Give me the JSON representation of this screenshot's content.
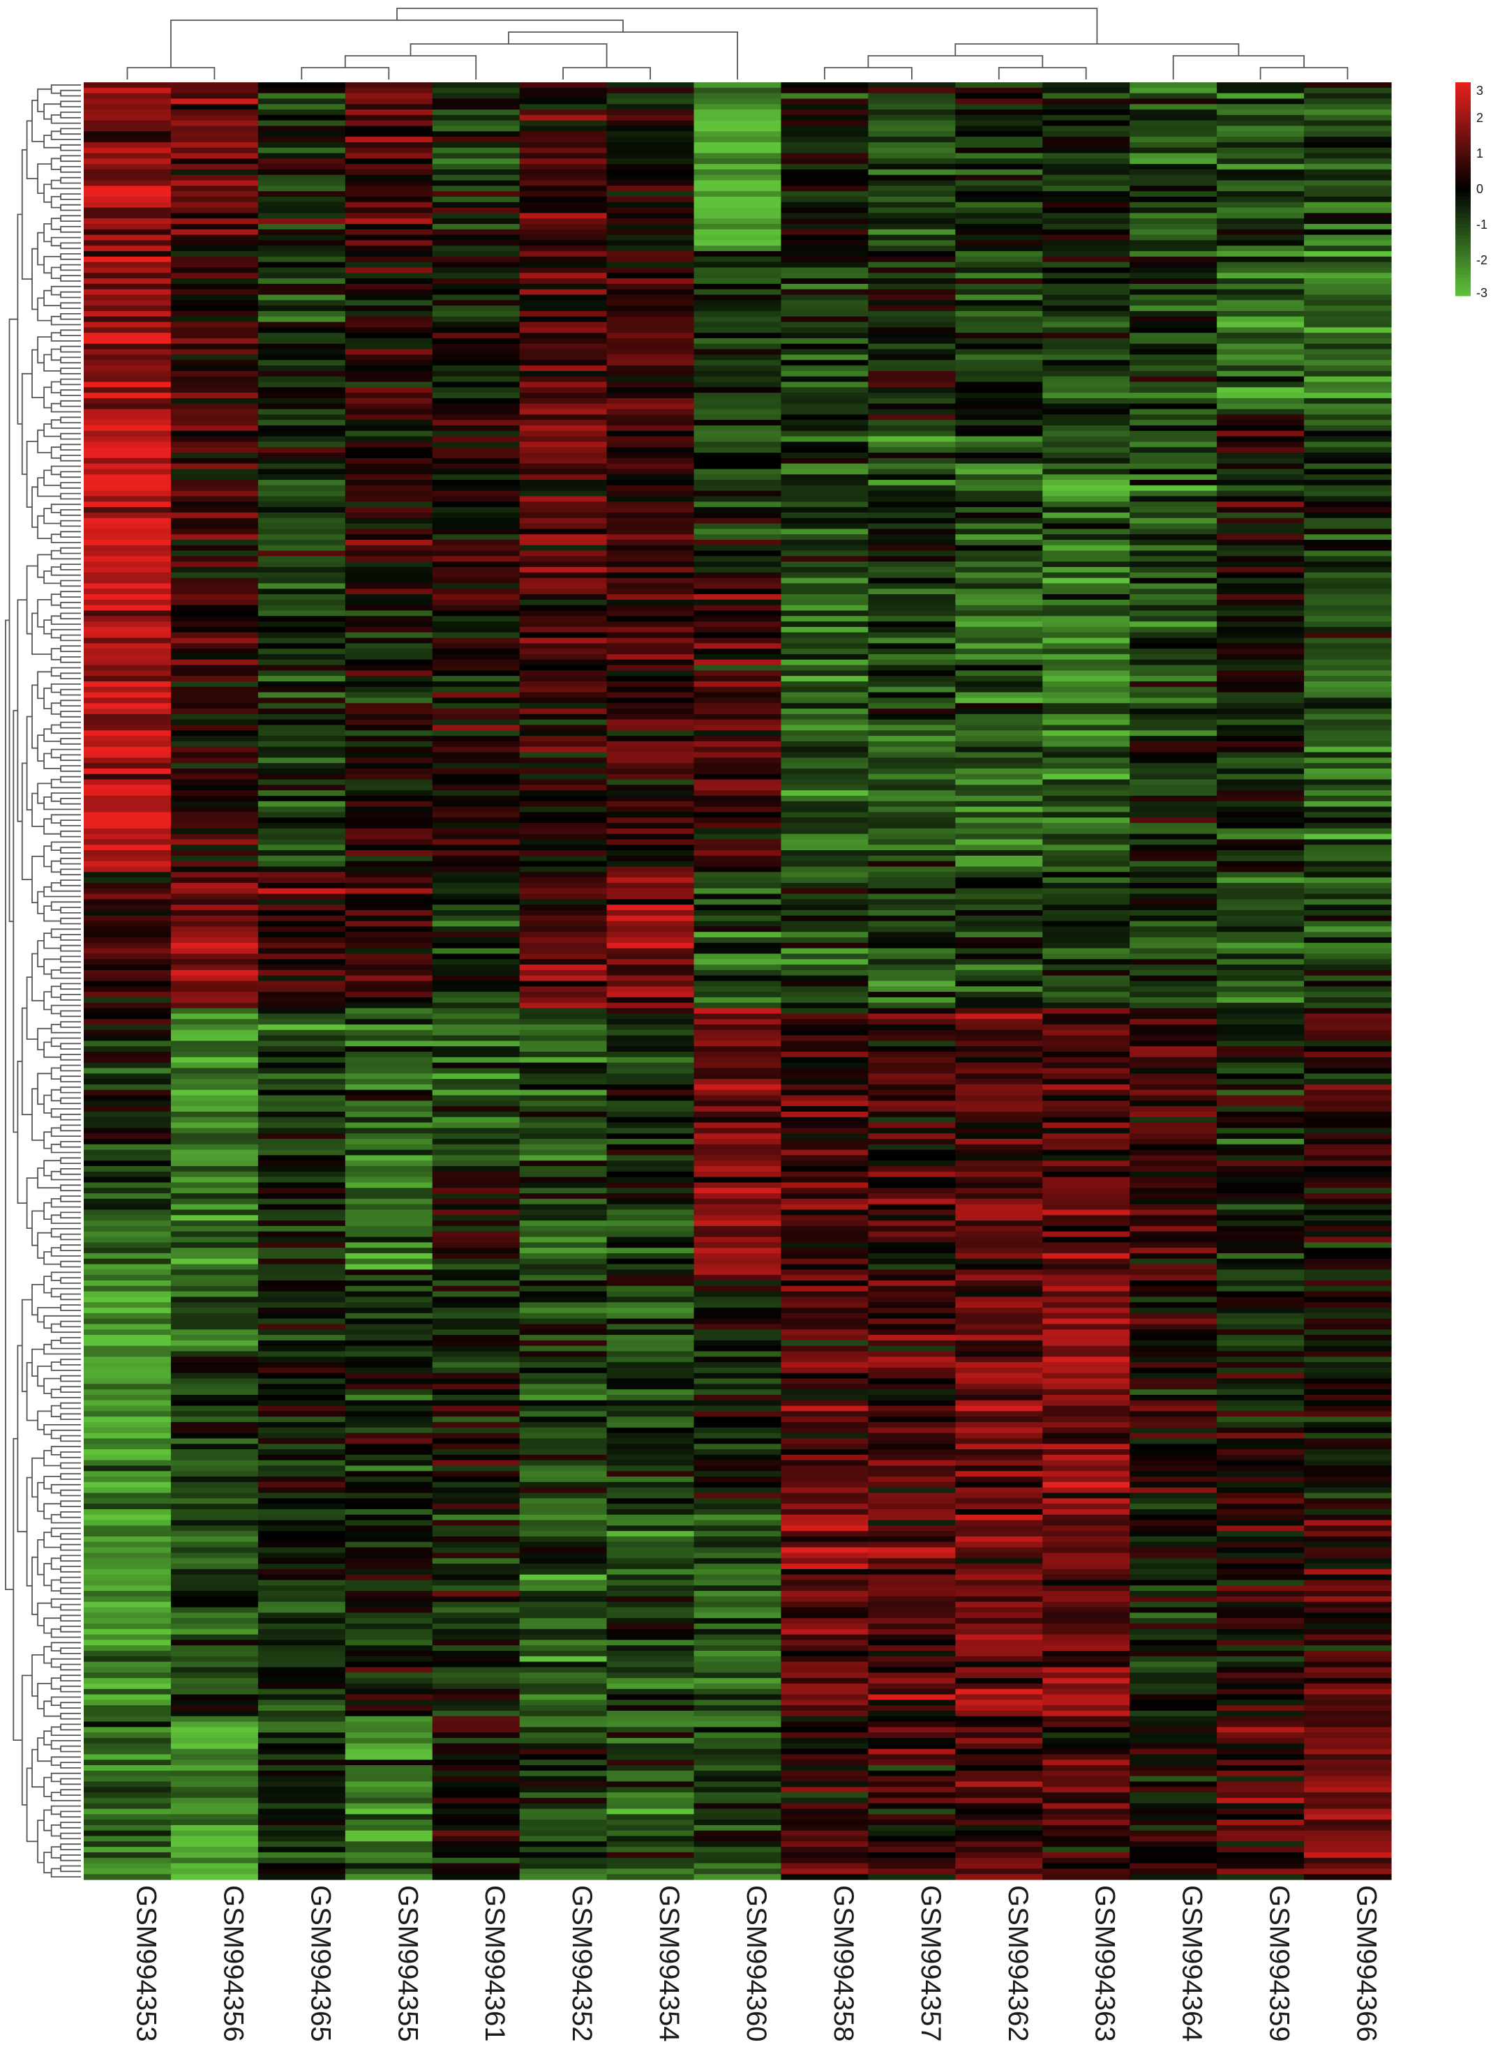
{
  "chart_data": {
    "type": "heatmap",
    "title": "",
    "xlabel": "",
    "ylabel": "",
    "columns": [
      "GSM994353",
      "GSM994356",
      "GSM994365",
      "GSM994355",
      "GSM994361",
      "GSM994352",
      "GSM994354",
      "GSM994360",
      "GSM994358",
      "GSM994357",
      "GSM994362",
      "GSM994363",
      "GSM994364",
      "GSM994359",
      "GSM994366"
    ],
    "color_scale": {
      "min": -3,
      "max": 3,
      "low_color": "#5fc23a",
      "mid_color": "#000000",
      "high_color": "#e8201e",
      "ticks": [
        3,
        2,
        1,
        0,
        -1,
        -2,
        -3
      ],
      "legend_position": "top-right"
    },
    "row_count": 330,
    "row_dendrogram": true,
    "column_dendrogram": true,
    "column_tree": [
      [
        [
          0,
          1
        ],
        [
          [
            [
              [
                2,
                3
              ],
              4
            ],
            [
              5,
              6
            ]
          ],
          7
        ]
      ],
      [
        [
          [
            8,
            9
          ],
          [
            10,
            11
          ]
        ],
        [
          12,
          [
            13,
            14
          ]
        ]
      ]
    ],
    "block_values_note": "Approximate mean z-scores per row block (rows top→bottom) and column",
    "row_blocks": [
      {
        "rows": 30,
        "values": [
          1.8,
          1.2,
          -0.3,
          0.9,
          -0.6,
          0.5,
          0.2,
          -2.6,
          -0.2,
          -0.9,
          -0.5,
          -0.6,
          -1.2,
          -1.0,
          -1.0
        ]
      },
      {
        "rows": 30,
        "values": [
          2.0,
          0.6,
          -0.6,
          0.4,
          -0.2,
          0.7,
          0.8,
          -0.8,
          -0.8,
          -0.5,
          -0.8,
          -0.9,
          -0.7,
          -1.6,
          -2.0
        ]
      },
      {
        "rows": 30,
        "values": [
          2.4,
          0.4,
          -0.7,
          0.2,
          0.3,
          0.8,
          0.7,
          -0.9,
          -0.9,
          -0.9,
          -1.3,
          -1.3,
          -1.3,
          0.0,
          -0.8
        ]
      },
      {
        "rows": 30,
        "values": [
          2.3,
          0.6,
          -0.8,
          -0.1,
          0.1,
          0.5,
          0.6,
          0.7,
          -1.3,
          -0.9,
          -1.6,
          -1.8,
          -1.2,
          -0.2,
          -1.1
        ]
      },
      {
        "rows": 25,
        "values": [
          2.6,
          0.4,
          -0.6,
          0.1,
          0.4,
          0.4,
          0.7,
          1.0,
          -1.2,
          -1.1,
          -1.6,
          -1.3,
          -0.6,
          -0.6,
          -1.3
        ]
      },
      {
        "rows": 25,
        "values": [
          0.7,
          1.4,
          0.6,
          0.5,
          -0.4,
          1.1,
          1.3,
          -1.1,
          -0.8,
          -1.0,
          -0.8,
          -0.9,
          -0.8,
          -1.0,
          -0.8
        ]
      },
      {
        "rows": 30,
        "values": [
          -0.5,
          -2.0,
          -0.8,
          -1.5,
          -1.4,
          -1.0,
          -0.6,
          1.3,
          0.6,
          0.4,
          0.8,
          0.8,
          0.7,
          -0.4,
          0.6
        ]
      },
      {
        "rows": 20,
        "values": [
          -1.3,
          -1.6,
          -0.3,
          -1.4,
          0.3,
          -1.0,
          -0.6,
          1.6,
          0.8,
          0.6,
          1.0,
          1.2,
          0.4,
          0.1,
          0.3
        ]
      },
      {
        "rows": 40,
        "values": [
          -2.3,
          -0.9,
          -0.4,
          -0.4,
          -0.2,
          -0.9,
          -0.9,
          -0.3,
          0.9,
          0.8,
          1.3,
          1.6,
          0.1,
          0.0,
          0.0
        ]
      },
      {
        "rows": 40,
        "values": [
          -2.4,
          -1.0,
          -0.6,
          -0.3,
          -0.5,
          -1.3,
          -1.0,
          -1.4,
          1.2,
          1.0,
          1.4,
          1.5,
          -0.3,
          0.2,
          0.5
        ]
      },
      {
        "rows": 30,
        "values": [
          -1.6,
          -2.2,
          -0.2,
          -1.6,
          0.6,
          -0.7,
          -0.9,
          -1.0,
          0.6,
          0.5,
          0.8,
          0.7,
          0.3,
          0.8,
          1.3
        ]
      }
    ]
  }
}
